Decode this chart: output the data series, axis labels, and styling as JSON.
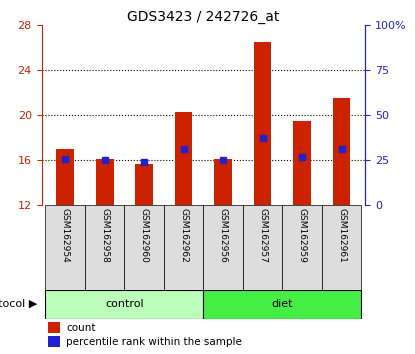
{
  "title": "GDS3423 / 242726_at",
  "samples": [
    "GSM162954",
    "GSM162958",
    "GSM162960",
    "GSM162962",
    "GSM162956",
    "GSM162957",
    "GSM162959",
    "GSM162961"
  ],
  "groups": [
    "control",
    "control",
    "control",
    "control",
    "diet",
    "diet",
    "diet",
    "diet"
  ],
  "bar_tops": [
    17.0,
    16.1,
    15.7,
    20.3,
    16.1,
    26.5,
    19.5,
    21.5
  ],
  "bar_base": 12.0,
  "blue_markers": [
    16.1,
    16.0,
    15.85,
    17.0,
    16.0,
    18.0,
    16.3,
    17.0
  ],
  "ylim_left": [
    12,
    28
  ],
  "ylim_right": [
    0,
    100
  ],
  "yticks_left": [
    12,
    16,
    20,
    24,
    28
  ],
  "ytick_labels_left": [
    "12",
    "16",
    "20",
    "24",
    "28"
  ],
  "yticks_right": [
    0,
    25,
    50,
    75,
    100
  ],
  "ytick_labels_right": [
    "0",
    "25",
    "50",
    "75",
    "100%"
  ],
  "bar_color": "#cc2200",
  "blue_marker_color": "#2222cc",
  "gridline_color": "#000000",
  "gridlines_at": [
    16,
    20,
    24
  ],
  "control_color_light": "#bbffbb",
  "diet_color": "#44ee44",
  "sample_cell_bg": "#dddddd",
  "protocol_label": "protocol",
  "control_label": "control",
  "diet_label": "diet",
  "legend_count_label": "count",
  "legend_percentile_label": "percentile rank within the sample",
  "bar_width": 0.45,
  "plot_bg": "#ffffff",
  "axis_left_color": "#cc2200",
  "axis_right_color": "#2222cc",
  "control_count": 4,
  "diet_count": 4
}
